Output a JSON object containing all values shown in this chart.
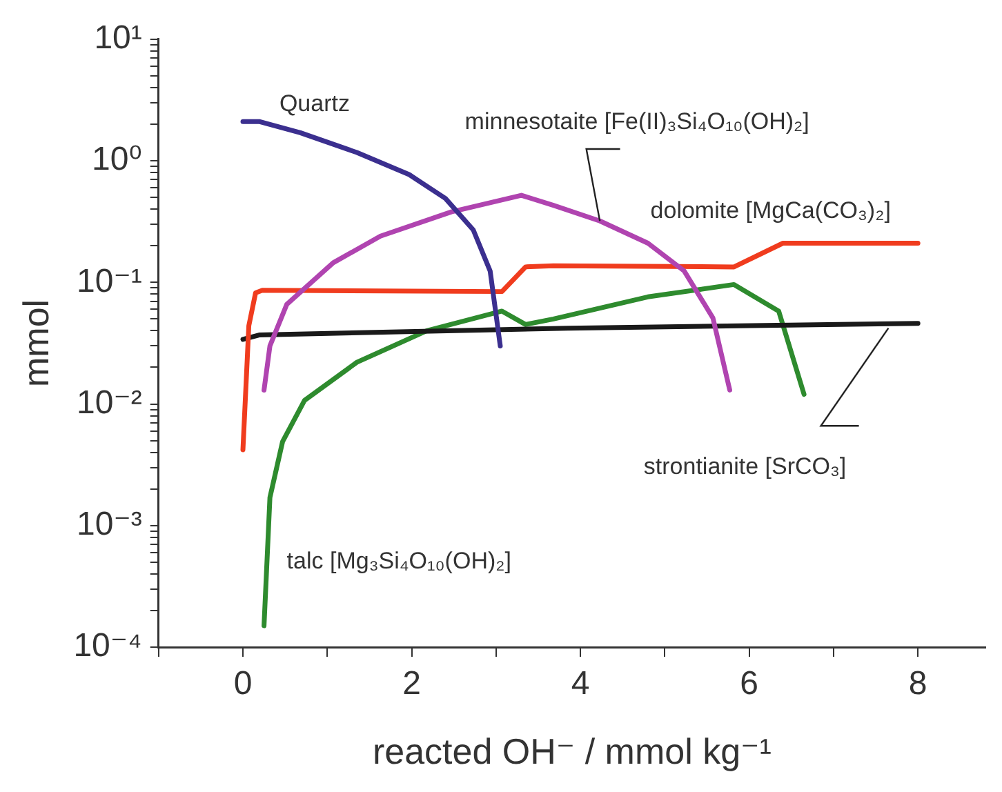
{
  "chart_data": {
    "type": "line",
    "xlabel": "reacted OH⁻ / mmol kg⁻¹",
    "ylabel": "mmol",
    "log": "y",
    "grid": false,
    "legend": false,
    "marker": "none",
    "line_style": "solid",
    "xlim": [
      -1,
      8.8
    ],
    "xticks": [
      {
        "value": -1,
        "label": null
      },
      0,
      {
        "value": 1,
        "label": null
      },
      2,
      {
        "value": 3,
        "label": null
      },
      4,
      {
        "value": 5,
        "label": null
      },
      6,
      {
        "value": 7,
        "label": null
      },
      8
    ],
    "ylim": [
      0.0001,
      10
    ],
    "yticks": [
      {
        "value": 0.0001,
        "label": "10⁻⁴"
      },
      {
        "value": 0.0002,
        "label": null
      },
      {
        "value": 0.0003,
        "label": null
      },
      {
        "value": 0.0004,
        "label": null
      },
      {
        "value": 0.0005,
        "label": null
      },
      {
        "value": 0.0006,
        "label": null
      },
      {
        "value": 0.0007,
        "label": null
      },
      {
        "value": 0.0008,
        "label": null
      },
      {
        "value": 0.0009,
        "label": null
      },
      {
        "value": 0.001,
        "label": "10⁻³"
      },
      {
        "value": 0.002,
        "label": null
      },
      {
        "value": 0.003,
        "label": null
      },
      {
        "value": 0.004,
        "label": null
      },
      {
        "value": 0.005,
        "label": null
      },
      {
        "value": 0.006,
        "label": null
      },
      {
        "value": 0.007,
        "label": null
      },
      {
        "value": 0.008,
        "label": null
      },
      {
        "value": 0.009,
        "label": null
      },
      {
        "value": 0.01,
        "label": "10⁻²"
      },
      {
        "value": 0.02,
        "label": null
      },
      {
        "value": 0.03,
        "label": null
      },
      {
        "value": 0.04,
        "label": null
      },
      {
        "value": 0.05,
        "label": null
      },
      {
        "value": 0.06,
        "label": null
      },
      {
        "value": 0.07,
        "label": null
      },
      {
        "value": 0.08,
        "label": null
      },
      {
        "value": 0.09,
        "label": null
      },
      {
        "value": 0.1,
        "label": "10⁻¹"
      },
      {
        "value": 0.2,
        "label": null
      },
      {
        "value": 0.3,
        "label": null
      },
      {
        "value": 0.4,
        "label": null
      },
      {
        "value": 0.5,
        "label": null
      },
      {
        "value": 0.6,
        "label": null
      },
      {
        "value": 0.7,
        "label": null
      },
      {
        "value": 0.8,
        "label": null
      },
      {
        "value": 0.9,
        "label": null
      },
      {
        "value": 1,
        "label": "10⁰"
      },
      {
        "value": 2,
        "label": null
      },
      {
        "value": 3,
        "label": null
      },
      {
        "value": 4,
        "label": null
      },
      {
        "value": 5,
        "label": null
      },
      {
        "value": 6,
        "label": null
      },
      {
        "value": 7,
        "label": null
      },
      {
        "value": 8,
        "label": null
      },
      {
        "value": 9,
        "label": null
      },
      {
        "value": 10,
        "label": "10¹"
      }
    ],
    "series": [
      {
        "name": "Quartz",
        "color": "#3b2f8f",
        "x": [
          0,
          0.2,
          0.68,
          1.35,
          1.97,
          2.4,
          2.73,
          2.93,
          3.05
        ],
        "values": [
          2.1,
          2.1,
          1.7,
          1.17,
          0.77,
          0.49,
          0.27,
          0.124,
          0.03
        ]
      },
      {
        "name": "minnesotaite [Fe(II)₃Si₄O₁₀(OH)₂]",
        "color": "#b044b0",
        "x": [
          0.25,
          0.32,
          0.52,
          1.07,
          1.63,
          2.47,
          3.3,
          3.68,
          4.23,
          4.8,
          5.23,
          5.57,
          5.77
        ],
        "values": [
          0.013,
          0.03,
          0.066,
          0.145,
          0.24,
          0.38,
          0.52,
          0.43,
          0.32,
          0.21,
          0.124,
          0.051,
          0.013
        ]
      },
      {
        "name": "dolomite [MgCa(CO₃)₂]",
        "color": "#f03c1e",
        "x": [
          0,
          0.07,
          0.15,
          0.23,
          3.07,
          3.35,
          3.68,
          5.82,
          6.4,
          8
        ],
        "values": [
          0.0042,
          0.044,
          0.082,
          0.086,
          0.084,
          0.134,
          0.137,
          0.134,
          0.21,
          0.21
        ]
      },
      {
        "name": "strontianite [SrCO₃]",
        "color": "#1a1a1a",
        "x": [
          0,
          0.2,
          3.85,
          8
        ],
        "values": [
          0.034,
          0.037,
          0.042,
          0.046
        ]
      },
      {
        "name": "talc [Mg₃Si₄O₁₀(OH)₂]",
        "color": "#2e8b2e",
        "x": [
          0.25,
          0.32,
          0.47,
          0.73,
          1.35,
          2.18,
          3.07,
          3.35,
          3.68,
          4.8,
          5.82,
          6.35,
          6.65
        ],
        "values": [
          0.00015,
          0.0017,
          0.0049,
          0.0107,
          0.022,
          0.04,
          0.058,
          0.045,
          0.05,
          0.076,
          0.096,
          0.058,
          0.012
        ]
      }
    ]
  }
}
